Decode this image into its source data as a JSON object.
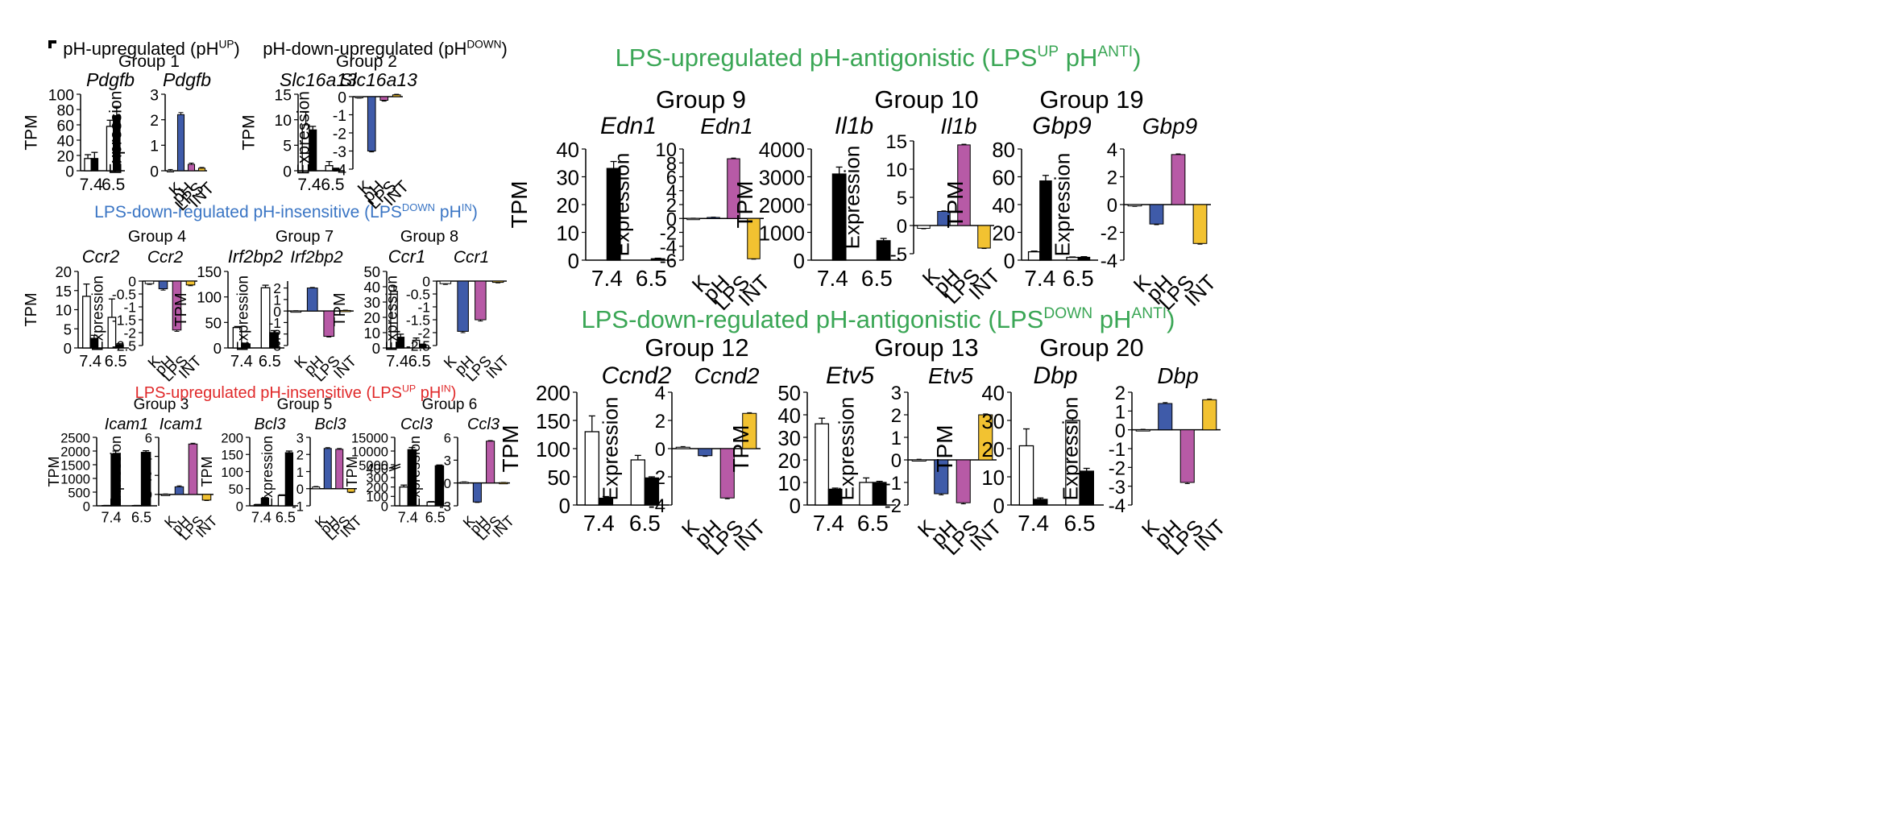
{
  "panel_letter": "F",
  "colors": {
    "k": "#ffffff",
    "ph": "#3f5ba9",
    "lps": "#b75aa6",
    "int": "#f2c231",
    "tpm_a": "#ffffff",
    "tpm_b": "#000000",
    "green": "#3aa655",
    "blue": "#3a75c4",
    "red": "#e0292a"
  },
  "headings": [
    {
      "id": "ph-up",
      "base": "pH-upregulated (pH",
      "sup": "UP",
      "tail": ")",
      "color": "#000000"
    },
    {
      "id": "ph-down",
      "base": "pH-down-upregulated (pH",
      "sup": "DOWN",
      "tail": ")",
      "color": "#000000"
    },
    {
      "id": "lps-down-in",
      "base": "LPS-down-regulated pH-insensitive (LPS",
      "sup": "DOWN",
      "mid": " pH",
      "sup2": "IN",
      "tail": ")",
      "color": "#3a75c4"
    },
    {
      "id": "lps-up-in",
      "base": "LPS-upregulated pH-insensitive (LPS",
      "sup": "UP",
      "mid": " pH",
      "sup2": "IN",
      "tail": ")",
      "color": "#e0292a"
    },
    {
      "id": "lps-up-anti",
      "base": "LPS-upregulated pH-antigonistic (LPS",
      "sup": "UP",
      "mid": " pH",
      "sup2": "ANTI",
      "tail": ")",
      "color": "#3aa655"
    },
    {
      "id": "lps-down-anti",
      "base": "LPS-down-regulated pH-antigonistic (LPS",
      "sup": "DOWN",
      "mid": " pH",
      "sup2": "ANTI",
      "tail": ")",
      "color": "#3aa655"
    }
  ],
  "chart_data": [
    {
      "group": "Group 1",
      "gene": "Pdgfb",
      "type": "bar",
      "ylabel": "TPM",
      "categories": [
        "7.4",
        "6.5"
      ],
      "yticks": [
        0,
        20,
        40,
        60,
        80,
        100
      ],
      "ylim": [
        0,
        100
      ],
      "series": [
        {
          "values": [
            16,
            58
          ]
        },
        {
          "values": [
            16,
            72
          ]
        }
      ],
      "errors": [
        [
          5,
          8
        ],
        [
          8,
          12
        ]
      ]
    },
    {
      "group": "Group 1",
      "gene": "Pdgfb",
      "type": "bar",
      "ylabel": "Expression",
      "categories": [
        "K",
        "pH",
        "LPS",
        "INT"
      ],
      "yticks": [
        0,
        1,
        2,
        3
      ],
      "ylim": [
        0,
        3
      ],
      "values": [
        0,
        2.2,
        0.25,
        0.1
      ],
      "errors": [
        0.05,
        0.08,
        0.05,
        0.03
      ]
    },
    {
      "group": "Group 2",
      "gene": "Slc16a13",
      "type": "bar",
      "ylabel": "TPM",
      "categories": [
        "7.4",
        "6.5"
      ],
      "yticks": [
        0,
        5,
        10,
        15
      ],
      "ylim": [
        0,
        15
      ],
      "series": [
        {
          "values": [
            9,
            1
          ]
        },
        {
          "values": [
            8,
            0.3
          ]
        }
      ],
      "errors": [
        [
          2.5,
          0.8
        ],
        [
          0.7,
          0.2
        ]
      ]
    },
    {
      "group": "Group 2",
      "gene": "Slc16a13",
      "type": "bar",
      "ylabel": "Expression",
      "categories": [
        "K",
        "pH",
        "LPS",
        "INT"
      ],
      "yticks": [
        0,
        -1,
        -2,
        -3,
        -4
      ],
      "ylim": [
        -4,
        0
      ],
      "values": [
        -0.05,
        -3.0,
        -0.2,
        0.1
      ],
      "errors": [
        0.03,
        0.05,
        0.05,
        0.03
      ]
    },
    {
      "group": "Group 4",
      "gene": "Ccr2",
      "type": "bar",
      "ylabel": "TPM",
      "categories": [
        "7.4",
        "6.5"
      ],
      "yticks": [
        0,
        5,
        10,
        15,
        20
      ],
      "ylim": [
        0,
        20
      ],
      "series": [
        {
          "values": [
            13.5,
            8
          ]
        },
        {
          "values": [
            2.5,
            0.8
          ]
        }
      ],
      "errors": [
        [
          3.2,
          4.8
        ],
        [
          0.8,
          0.3
        ]
      ]
    },
    {
      "group": "Group 4",
      "gene": "Ccr2",
      "type": "bar",
      "ylabel": "Expression",
      "categories": [
        "K",
        "pH",
        "LPS",
        "INT"
      ],
      "yticks": [
        0.0,
        -0.5,
        -1.0,
        -1.5,
        -2.0,
        -2.5
      ],
      "ylim": [
        -2.5,
        0
      ],
      "values": [
        -0.1,
        -0.3,
        -1.9,
        -0.15
      ],
      "errors": [
        0.03,
        0.05,
        0.05,
        0.03
      ]
    },
    {
      "group": "Group 7",
      "gene": "Irf2bp2",
      "type": "bar",
      "ylabel": "TPM",
      "categories": [
        "7.4",
        "6.5"
      ],
      "yticks": [
        0,
        50,
        100,
        150
      ],
      "ylim": [
        0,
        150
      ],
      "series": [
        {
          "values": [
            40,
            118
          ]
        },
        {
          "values": [
            8,
            30
          ]
        }
      ],
      "errors": [
        [
          2,
          5
        ],
        [
          1.5,
          4
        ]
      ]
    },
    {
      "group": "Group 7",
      "gene": "Irf2bp2",
      "type": "bar",
      "ylabel": "Expression",
      "categories": [
        "K",
        "pH",
        "LPS",
        "INT"
      ],
      "yticks": [
        2,
        1,
        0,
        -1,
        -2,
        -3
      ],
      "ylim": [
        -3,
        2.6
      ],
      "values": [
        0,
        2.0,
        -2.2,
        0.05
      ],
      "errors": [
        0.03,
        0.05,
        0.06,
        0.03
      ]
    },
    {
      "group": "Group 8",
      "gene": "Ccr1",
      "type": "bar",
      "ylabel": "TPM",
      "categories": [
        "7.4",
        "6.5"
      ],
      "yticks": [
        0,
        10,
        20,
        30,
        40,
        50
      ],
      "ylim": [
        0,
        50
      ],
      "series": [
        {
          "values": [
            37,
            5
          ]
        },
        {
          "values": [
            7,
            2
          ]
        }
      ],
      "errors": [
        [
          3,
          1.5
        ],
        [
          2,
          0.5
        ]
      ]
    },
    {
      "group": "Group 8",
      "gene": "Ccr1",
      "type": "bar",
      "ylabel": "Expression",
      "categories": [
        "K",
        "pH",
        "LPS",
        "INT"
      ],
      "yticks": [
        0.0,
        -0.5,
        -1.0,
        -1.5,
        -2.0,
        -2.5
      ],
      "ylim": [
        -2.5,
        0
      ],
      "values": [
        -0.1,
        -1.95,
        -1.5,
        -0.05
      ],
      "errors": [
        0.03,
        0.05,
        0.05,
        0.02
      ]
    },
    {
      "group": "Group 3",
      "gene": "Icam1",
      "type": "bar",
      "ylabel": "TPM",
      "categories": [
        "7.4",
        "6.5"
      ],
      "yticks": [
        0,
        500,
        1000,
        1500,
        2000,
        2500
      ],
      "ylim": [
        0,
        2500
      ],
      "series": [
        {
          "values": [
            10,
            10
          ]
        },
        {
          "values": [
            1900,
            1950
          ]
        }
      ],
      "errors": [
        [
          5,
          5
        ],
        [
          100,
          60
        ]
      ]
    },
    {
      "group": "Group 3",
      "gene": "Icam1",
      "type": "bar",
      "ylabel": "Expression",
      "categories": [
        "K",
        "pH",
        "LPS",
        "INT"
      ],
      "yticks": [
        6,
        4,
        2,
        0
      ],
      "ylim": [
        -1.2,
        6
      ],
      "values": [
        0,
        0.8,
        5.3,
        -0.6
      ],
      "errors": [
        0.05,
        0.1,
        0.08,
        0.05
      ]
    },
    {
      "group": "Group 5",
      "gene": "Bcl3",
      "type": "bar",
      "ylabel": "TPM",
      "categories": [
        "7.4",
        "6.5"
      ],
      "yticks": [
        0,
        50,
        100,
        150,
        200
      ],
      "ylim": [
        0,
        200
      ],
      "series": [
        {
          "values": [
            3,
            30
          ]
        },
        {
          "values": [
            22,
            155
          ]
        }
      ],
      "errors": [
        [
          1,
          2
        ],
        [
          2,
          5
        ]
      ]
    },
    {
      "group": "Group 5",
      "gene": "Bcl3",
      "type": "bar",
      "ylabel": "Expression",
      "categories": [
        "K",
        "pH",
        "LPS",
        "INT"
      ],
      "yticks": [
        3,
        2,
        1,
        0,
        -1
      ],
      "ylim": [
        -1,
        3
      ],
      "values": [
        0.1,
        2.35,
        2.3,
        -0.2
      ],
      "errors": [
        0.03,
        0.05,
        0.05,
        0.03
      ]
    },
    {
      "group": "Group 6",
      "gene": "Ccl3",
      "type": "bar",
      "ylabel": "TPM",
      "categories": [
        "7.4",
        "6.5"
      ],
      "yticks": [
        "0",
        "100",
        "200",
        "300",
        "400",
        "5000",
        "10000",
        "15000"
      ],
      "broken_axis": true,
      "series": [
        {
          "values": [
            200,
            40
          ]
        },
        {
          "values": [
            10500,
            4600
          ]
        }
      ],
      "errors": [
        [
          20,
          5
        ],
        [
          800,
          300
        ]
      ]
    },
    {
      "group": "Group 6",
      "gene": "Ccl3",
      "type": "bar",
      "ylabel": "Expression",
      "categories": [
        "K",
        "pH",
        "LPS",
        "INT"
      ],
      "yticks": [
        6,
        3,
        0,
        -3
      ],
      "ylim": [
        -3,
        6
      ],
      "values": [
        0.1,
        -2.5,
        5.5,
        0.05
      ],
      "errors": [
        0.05,
        0.06,
        0.08,
        0.03
      ]
    },
    {
      "group": "Group 9",
      "gene": "Edn1",
      "type": "bar",
      "ylabel": "TPM",
      "categories": [
        "7.4",
        "6.5"
      ],
      "yticks": [
        0,
        10,
        20,
        30,
        40
      ],
      "ylim": [
        0,
        40
      ],
      "series": [
        {
          "values": [
            0,
            0
          ]
        },
        {
          "values": [
            33,
            0.5
          ]
        }
      ],
      "errors": [
        [
          0,
          0
        ],
        [
          2.5,
          0.2
        ]
      ]
    },
    {
      "group": "Group 9",
      "gene": "Edn1",
      "type": "bar",
      "ylabel": "Expression",
      "categories": [
        "K",
        "pH",
        "LPS",
        "INT"
      ],
      "yticks": [
        10,
        8,
        6,
        4,
        2,
        0,
        -2,
        -4,
        -6
      ],
      "ylim": [
        -6,
        10
      ],
      "values": [
        0,
        0.15,
        8.6,
        -5.8
      ],
      "errors": [
        0.05,
        0.05,
        0.1,
        0.06
      ]
    },
    {
      "group": "Group 10",
      "gene": "Il1b",
      "type": "bar",
      "ylabel": "TPM",
      "categories": [
        "7.4",
        "6.5"
      ],
      "yticks": [
        0,
        1000,
        2000,
        3000,
        4000
      ],
      "ylim": [
        0,
        4000
      ],
      "series": [
        {
          "values": [
            0,
            0
          ]
        },
        {
          "values": [
            3100,
            700
          ]
        }
      ],
      "errors": [
        [
          0,
          0
        ],
        [
          250,
          80
        ]
      ]
    },
    {
      "group": "Group 10",
      "gene": "Il1b",
      "type": "bar",
      "ylabel": "Expression",
      "categories": [
        "K",
        "pH",
        "LPS",
        "INT"
      ],
      "yticks": [
        15,
        10,
        5,
        0,
        -5
      ],
      "ylim": [
        -5,
        15
      ],
      "values": [
        -0.5,
        2.5,
        14.3,
        -4.0
      ],
      "errors": [
        0.08,
        0.1,
        0.12,
        0.08
      ]
    },
    {
      "group": "Group 19",
      "gene": "Gbp9",
      "type": "bar",
      "ylabel": "TPM",
      "categories": [
        "7.4",
        "6.5"
      ],
      "yticks": [
        0,
        20,
        40,
        60,
        80
      ],
      "ylim": [
        0,
        80
      ],
      "series": [
        {
          "values": [
            6,
            2
          ]
        },
        {
          "values": [
            57,
            2
          ]
        }
      ],
      "errors": [
        [
          0.5,
          0.3
        ],
        [
          4,
          0.5
        ]
      ]
    },
    {
      "group": "Group 19",
      "gene": "Gbp9",
      "type": "bar",
      "ylabel": "Expression",
      "categories": [
        "K",
        "pH",
        "LPS",
        "INT"
      ],
      "yticks": [
        4,
        2,
        0,
        -2,
        -4
      ],
      "ylim": [
        -4,
        4
      ],
      "values": [
        -0.1,
        -1.4,
        3.6,
        -2.8
      ],
      "errors": [
        0.03,
        0.05,
        0.05,
        0.05
      ]
    },
    {
      "group": "Group 12",
      "gene": "Ccnd2",
      "type": "bar",
      "ylabel": "TPM",
      "categories": [
        "7.4",
        "6.5"
      ],
      "yticks": [
        0,
        50,
        100,
        150,
        200
      ],
      "ylim": [
        0,
        200
      ],
      "series": [
        {
          "values": [
            130,
            80
          ]
        },
        {
          "values": [
            12,
            48
          ]
        }
      ],
      "errors": [
        [
          28,
          8
        ],
        [
          3,
          2
        ]
      ]
    },
    {
      "group": "Group 12",
      "gene": "Ccnd2",
      "type": "bar",
      "ylabel": "Expression",
      "categories": [
        "K",
        "pH",
        "LPS",
        "INT"
      ],
      "yticks": [
        4,
        2,
        0,
        -2,
        -4
      ],
      "ylim": [
        -4,
        4
      ],
      "values": [
        0.1,
        -0.5,
        -3.5,
        2.5
      ],
      "errors": [
        0.05,
        0.05,
        0.06,
        0.05
      ]
    },
    {
      "group": "Group 13",
      "gene": "Etv5",
      "type": "bar",
      "ylabel": "TPM",
      "categories": [
        "7.4",
        "6.5"
      ],
      "yticks": [
        0,
        10,
        20,
        30,
        40,
        50
      ],
      "ylim": [
        0,
        50
      ],
      "series": [
        {
          "values": [
            36,
            10
          ]
        },
        {
          "values": [
            7,
            10
          ]
        }
      ],
      "errors": [
        [
          2.5,
          2
        ],
        [
          0.5,
          0.5
        ]
      ]
    },
    {
      "group": "Group 13",
      "gene": "Etv5",
      "type": "bar",
      "ylabel": "Expression",
      "categories": [
        "K",
        "pH",
        "LPS",
        "INT"
      ],
      "yticks": [
        3,
        2,
        1,
        0,
        -1,
        -2
      ],
      "ylim": [
        -2,
        3
      ],
      "values": [
        0,
        -1.5,
        -1.9,
        2.0
      ],
      "errors": [
        0.03,
        0.05,
        0.05,
        0.04
      ]
    },
    {
      "group": "Group 20",
      "gene": "Dbp",
      "type": "bar",
      "ylabel": "TPM",
      "categories": [
        "7.4",
        "6.5"
      ],
      "yticks": [
        0,
        10,
        20,
        30,
        40
      ],
      "ylim": [
        0,
        40
      ],
      "series": [
        {
          "values": [
            21,
            30
          ]
        },
        {
          "values": [
            2,
            12
          ]
        }
      ],
      "errors": [
        [
          6,
          0.8
        ],
        [
          0.5,
          1
        ]
      ]
    },
    {
      "group": "Group 20",
      "gene": "Dbp",
      "type": "bar",
      "ylabel": "Expression",
      "categories": [
        "K",
        "pH",
        "LPS",
        "INT"
      ],
      "yticks": [
        2,
        1,
        0,
        -1,
        -2,
        -3,
        -4
      ],
      "ylim": [
        -4,
        2
      ],
      "values": [
        0,
        1.4,
        -2.8,
        1.6
      ],
      "errors": [
        0.03,
        0.05,
        0.06,
        0.04
      ]
    }
  ]
}
